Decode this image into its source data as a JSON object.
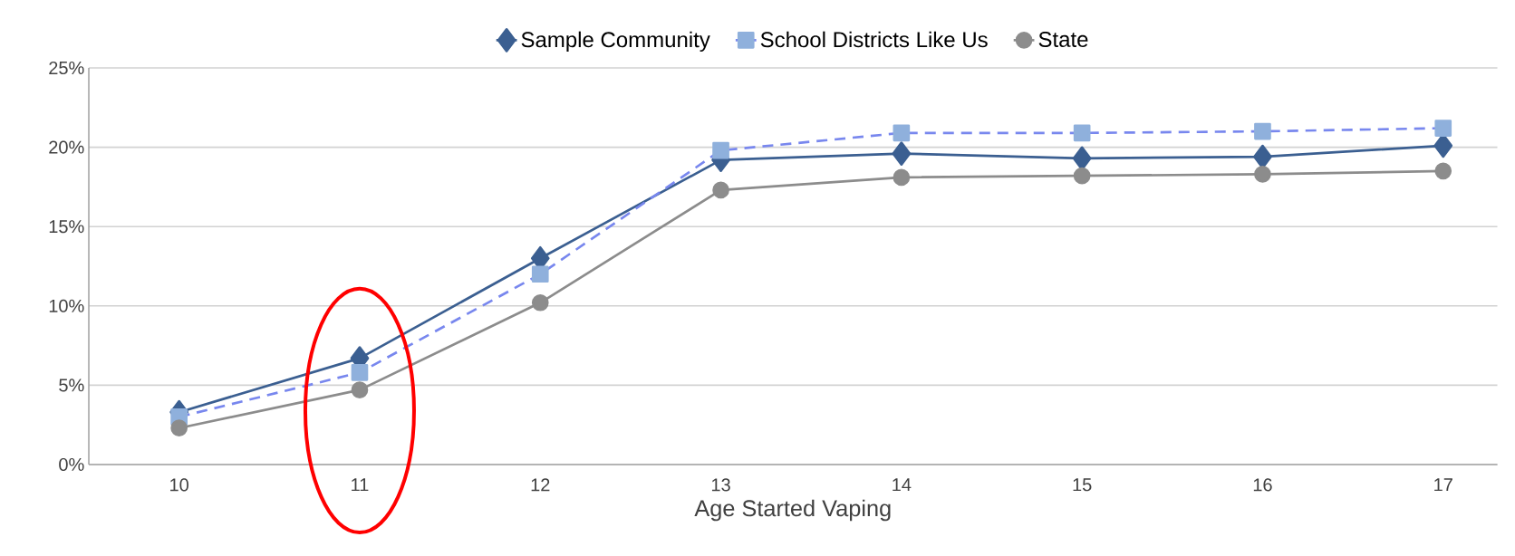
{
  "chart_data": {
    "type": "line",
    "xlabel": "Age Started Vaping",
    "categories": [
      "10",
      "11",
      "12",
      "13",
      "14",
      "15",
      "16",
      "17"
    ],
    "series": [
      {
        "name": "Sample Community",
        "color": "#3b5f91",
        "marker": "diamond",
        "line_style": "solid",
        "values": [
          3.3,
          6.7,
          13.0,
          19.2,
          19.6,
          19.3,
          19.4,
          20.1
        ]
      },
      {
        "name": "School Districts Like Us",
        "color": "#8fb0dc",
        "marker": "square",
        "line_style": "dashed",
        "values": [
          3.0,
          5.8,
          12.0,
          19.8,
          20.9,
          20.9,
          21.0,
          21.2
        ]
      },
      {
        "name": "State",
        "color": "#8c8c8c",
        "marker": "circle",
        "line_style": "solid",
        "values": [
          2.3,
          4.7,
          10.2,
          17.3,
          18.1,
          18.2,
          18.3,
          18.5
        ]
      }
    ],
    "ylim": [
      0,
      25
    ],
    "yticks": [
      {
        "value": 0,
        "label": "0%"
      },
      {
        "value": 5,
        "label": "5%"
      },
      {
        "value": 10,
        "label": "10%"
      },
      {
        "value": 15,
        "label": "15%"
      },
      {
        "value": 20,
        "label": "20%"
      },
      {
        "value": 25,
        "label": "25%"
      }
    ],
    "grid": "y",
    "legend": "top"
  }
}
